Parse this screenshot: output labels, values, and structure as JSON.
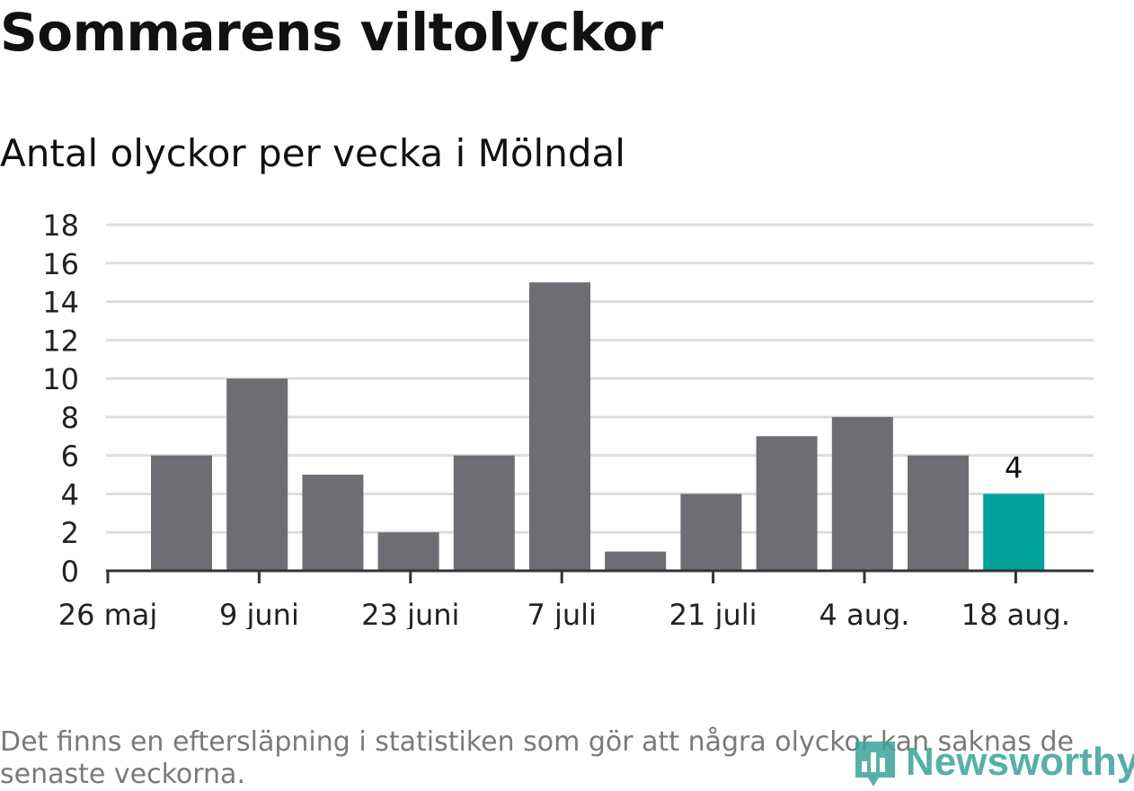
{
  "header": {
    "title": "Sommarens viltolyckor",
    "subtitle": "Antal olyckor per vecka i Mölndal"
  },
  "footnote": "Det finns en eftersläpning i statistiken som gör att några olyckor kan saknas de senaste veckorna.",
  "logo": {
    "text": "Newsworthy",
    "icon": "newsworthy-logo-icon"
  },
  "chart_data": {
    "type": "bar",
    "x_tick_labels": [
      "26 maj",
      "9 juni",
      "23 juni",
      "7 juli",
      "21 juli",
      "4 aug.",
      "18 aug."
    ],
    "values": [
      6,
      10,
      5,
      2,
      6,
      15,
      1,
      4,
      7,
      8,
      6,
      4
    ],
    "highlight_index": 11,
    "highlight_label": "4",
    "ylim": [
      0,
      18
    ],
    "yticks": [
      0,
      2,
      4,
      6,
      8,
      10,
      12,
      14,
      16,
      18
    ],
    "grid": true,
    "colors": {
      "bar": "#6e6d73",
      "highlight": "#00a39a",
      "grid": "#dddddd",
      "axis": "#333333",
      "tick_text": "#222222"
    }
  }
}
